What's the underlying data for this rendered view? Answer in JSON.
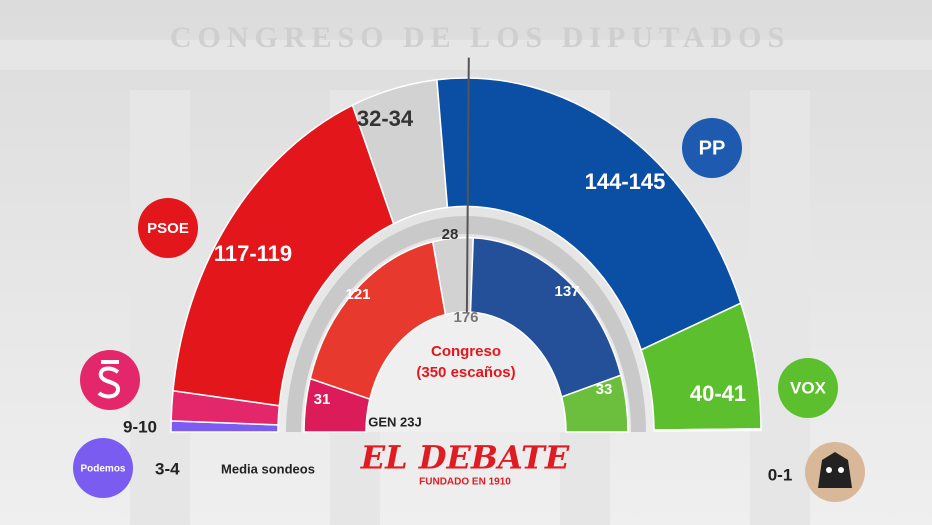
{
  "background_text": "CONGRESO DE LOS DIPUTADOS",
  "chart_data": {
    "type": "parliament",
    "title": "Congreso",
    "subtitle": "(350 escaños)",
    "total": 350,
    "majority": 176,
    "rings": [
      {
        "name": "Media sondeos",
        "values": [
          [
            3,
            4
          ],
          [
            9,
            10
          ],
          [
            117,
            119
          ],
          [
            32,
            34
          ],
          [
            144,
            145
          ],
          [
            40,
            41
          ],
          [
            0,
            1
          ]
        ],
        "value_labels": [
          "3-4",
          "9-10",
          "117-119",
          "32-34",
          "144-145",
          "40-41",
          "0-1"
        ],
        "colors": [
          "#7b5cf0",
          "#e4266b",
          "#e3161c",
          "#d2d2d2",
          "#0a4fa3",
          "#5bbf2e",
          "#c9a27e"
        ]
      },
      {
        "name": "GEN 23J",
        "values": [
          31,
          121,
          28,
          137,
          33
        ],
        "colors": [
          "#dc1c5a",
          "#e8392f",
          "#d2d2d2",
          "#24509a",
          "#6cbf3c"
        ]
      }
    ],
    "logos": [
      {
        "label": "PSOE",
        "color": "#e3161c"
      },
      {
        "label": "PP",
        "color": "#1d5ab0"
      },
      {
        "label": "Podemos",
        "color": "#7b5cf0"
      },
      {
        "label": "VOX",
        "color": "#5bbf2e"
      }
    ]
  },
  "brand": {
    "name": "EL DEBATE",
    "tagline": "FUNDADO EN 1910"
  }
}
